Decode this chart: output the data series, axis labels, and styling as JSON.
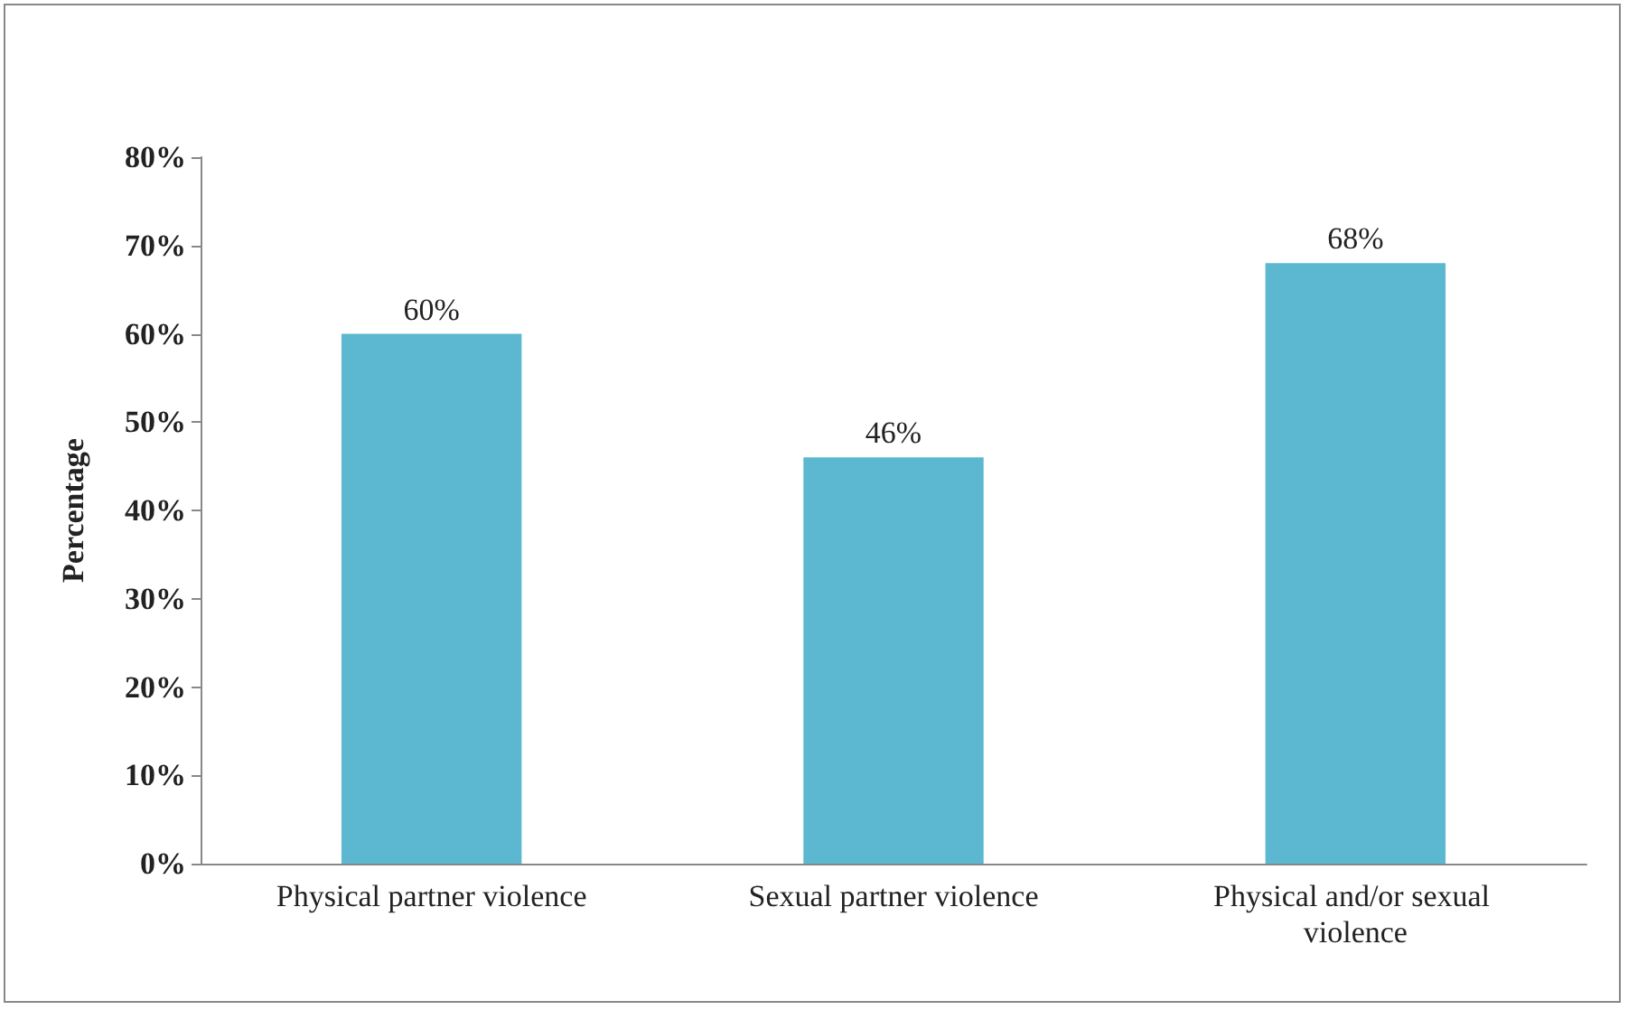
{
  "chart_data": {
    "type": "bar",
    "ylabel": "Percentage",
    "categories": [
      "Physical partner violence",
      "Sexual partner violence",
      "Physical and/or sexual violence"
    ],
    "values": [
      60,
      46,
      68
    ],
    "color": "#5bb8d0",
    "value_labels": [
      "60%",
      "46%",
      "68%"
    ],
    "ylim": [
      0,
      80
    ],
    "yticks": [
      {
        "value": 0,
        "label": "0%"
      },
      {
        "value": 10,
        "label": "10%"
      },
      {
        "value": 20,
        "label": "20%"
      },
      {
        "value": 30,
        "label": "30%"
      },
      {
        "value": 40,
        "label": "40%"
      },
      {
        "value": 50,
        "label": "50%"
      },
      {
        "value": 60,
        "label": "60%"
      },
      {
        "value": 70,
        "label": "70%"
      },
      {
        "value": 80,
        "label": "80%"
      }
    ],
    "grid": false
  }
}
